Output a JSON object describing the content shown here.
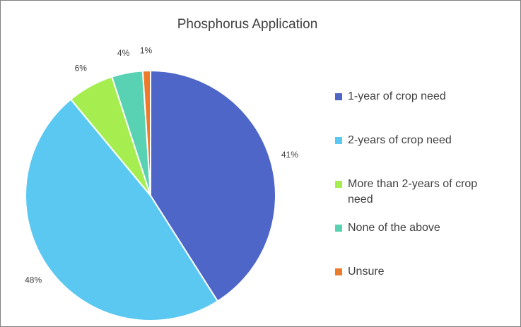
{
  "chart_data": {
    "type": "pie",
    "title": "Phosphorus Application",
    "categories": [
      "1-year of crop need",
      "2-years of crop need",
      "More than 2-years of crop need",
      "None of the above",
      "Unsure"
    ],
    "values": [
      41,
      48,
      6,
      4,
      1
    ],
    "value_labels": [
      "41%",
      "48%",
      "6%",
      "4%",
      "1%"
    ],
    "colors": [
      "#4e66c8",
      "#5bc8f2",
      "#a6ee50",
      "#58d2b2",
      "#ee7b2b"
    ],
    "legend": "right"
  }
}
